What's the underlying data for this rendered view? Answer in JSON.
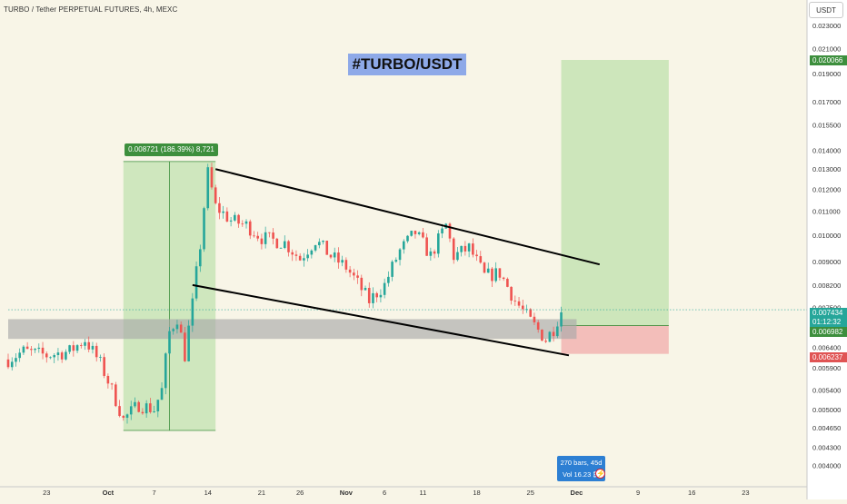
{
  "header": {
    "symbol_title": "TURBO / Tether PERPETUAL FUTURES, 4h, MEXC",
    "currency": "USDT"
  },
  "annotation": {
    "hashtag": "#TURBO/USDT",
    "range_measure": "0.008721 (186.39%) 8,721"
  },
  "bars_info": {
    "count": "270 bars, 45d",
    "volume": "Vol 16.23 ₿"
  },
  "colors": {
    "background": "#f8f5e7",
    "up": "#26a69a",
    "down": "#ef5350",
    "target_zone": "#c8e4b6",
    "stop_zone": "#f2b8b5",
    "support_band": "#a9a9a9",
    "measure_zone": "#c8e4b6",
    "hashtag_bg": "#8ea9e8"
  },
  "price_labels": [
    {
      "text": "0.020066",
      "value": 0.020066,
      "color": "#3d8f3d"
    },
    {
      "text": "0.007434",
      "value": 0.007434,
      "color": "#26a69a"
    },
    {
      "text": "01:12:32",
      "value": 0.00716,
      "color": "#26a69a"
    },
    {
      "text": "0.006982",
      "value": 0.006982,
      "color": "#3d8f3d"
    },
    {
      "text": "0.006237",
      "value": 0.006237,
      "color": "#e05454"
    }
  ],
  "chart_data": {
    "type": "candlestick",
    "title": "TURBO / Tether PERPETUAL FUTURES, 4h, MEXC",
    "y_scale": "log",
    "ylim": [
      0.0038,
      0.0245
    ],
    "y_ticks": [
      "0.023000",
      "0.021000",
      "0.019000",
      "0.017000",
      "0.015500",
      "0.014000",
      "0.013000",
      "0.012000",
      "0.011000",
      "0.010000",
      "0.009000",
      "0.008200",
      "0.007500",
      "0.006900",
      "0.006400",
      "0.005900",
      "0.005400",
      "0.005000",
      "0.004650",
      "0.004300",
      "0.004000"
    ],
    "x_ticks": [
      "23",
      "Oct",
      "7",
      "14",
      "21",
      "26",
      "Nov",
      "6",
      "11",
      "18",
      "25",
      "Dec",
      "9",
      "16",
      "23"
    ],
    "current_price": 0.007434,
    "grid": false,
    "price_path": [
      {
        "date": "Sep 18",
        "price": 0.0061
      },
      {
        "date": "Sep 20",
        "price": 0.0063
      },
      {
        "date": "Sep 23",
        "price": 0.0062
      },
      {
        "date": "Sep 26",
        "price": 0.0063
      },
      {
        "date": "Sep 28",
        "price": 0.0066
      },
      {
        "date": "Sep 30",
        "price": 0.006
      },
      {
        "date": "Oct 2",
        "price": 0.0052
      },
      {
        "date": "Oct 3",
        "price": 0.0048
      },
      {
        "date": "Oct 5",
        "price": 0.0051
      },
      {
        "date": "Oct 7",
        "price": 0.005
      },
      {
        "date": "Oct 8",
        "price": 0.0054
      },
      {
        "date": "Oct 9",
        "price": 0.0068
      },
      {
        "date": "Oct 10",
        "price": 0.0072
      },
      {
        "date": "Oct 11",
        "price": 0.0062
      },
      {
        "date": "Oct 12",
        "price": 0.0076
      },
      {
        "date": "Oct 13",
        "price": 0.0096
      },
      {
        "date": "Oct 14",
        "price": 0.0128
      },
      {
        "date": "Oct 15",
        "price": 0.0112
      },
      {
        "date": "Oct 17",
        "price": 0.0106
      },
      {
        "date": "Oct 19",
        "price": 0.0104
      },
      {
        "date": "Oct 21",
        "price": 0.0099
      },
      {
        "date": "Oct 24",
        "price": 0.0097
      },
      {
        "date": "Oct 26",
        "price": 0.0091
      },
      {
        "date": "Oct 28",
        "price": 0.0098
      },
      {
        "date": "Oct 30",
        "price": 0.0092
      },
      {
        "date": "Nov 1",
        "price": 0.0088
      },
      {
        "date": "Nov 4",
        "price": 0.0077
      },
      {
        "date": "Nov 6",
        "price": 0.0082
      },
      {
        "date": "Nov 8",
        "price": 0.0094
      },
      {
        "date": "Nov 10",
        "price": 0.0101
      },
      {
        "date": "Nov 12",
        "price": 0.0092
      },
      {
        "date": "Nov 14",
        "price": 0.0104
      },
      {
        "date": "Nov 15",
        "price": 0.0092
      },
      {
        "date": "Nov 17",
        "price": 0.0095
      },
      {
        "date": "Nov 19",
        "price": 0.0085
      },
      {
        "date": "Nov 21",
        "price": 0.0086
      },
      {
        "date": "Nov 23",
        "price": 0.0077
      },
      {
        "date": "Nov 25",
        "price": 0.0071
      },
      {
        "date": "Nov 27",
        "price": 0.0066
      },
      {
        "date": "Nov 28",
        "price": 0.0069
      },
      {
        "date": "Nov 29",
        "price": 0.0074
      }
    ],
    "measure_range": {
      "from_date": "Oct 3",
      "to_date": "Oct 15",
      "low": 0.0046,
      "high": 0.0134,
      "label": "0.008721 (186.39%) 8,721"
    },
    "channel_upper": {
      "from": {
        "date": "Oct 15",
        "price": 0.013
      },
      "to": {
        "date": "Dec 4",
        "price": 0.0089
      }
    },
    "channel_lower": {
      "from": {
        "date": "Oct 12",
        "price": 0.0082
      },
      "to": {
        "date": "Nov 30",
        "price": 0.0062
      }
    },
    "support_zone": {
      "from_date": "Sep 18",
      "to_date": "Dec 1",
      "low": 0.00662,
      "high": 0.00716
    },
    "long_position": {
      "from_date": "Nov 29",
      "to_date": "Dec 13",
      "entry": 0.006982,
      "target": 0.020066,
      "stop": 0.006237
    }
  }
}
